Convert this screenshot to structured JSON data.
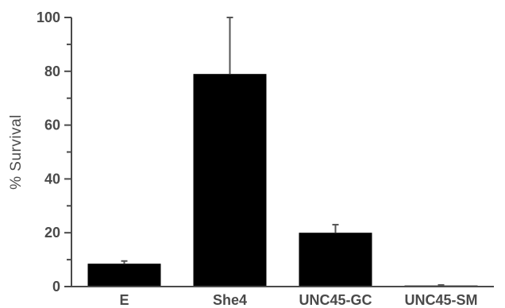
{
  "chart_data": {
    "type": "bar",
    "title": "",
    "xlabel": "",
    "ylabel": "% Survival",
    "categories": [
      "E",
      "She4",
      "UNC45-GC",
      "UNC45-SM"
    ],
    "values": [
      8.5,
      79,
      20,
      0.4
    ],
    "errors": [
      1,
      21,
      3,
      0.2
    ],
    "ylim": [
      0,
      100
    ],
    "yticks": [
      0,
      20,
      40,
      60,
      80,
      100
    ],
    "yminor_step": 10,
    "grid": false,
    "bar_color": "#000000",
    "axis_color": "#4a4a4a"
  }
}
